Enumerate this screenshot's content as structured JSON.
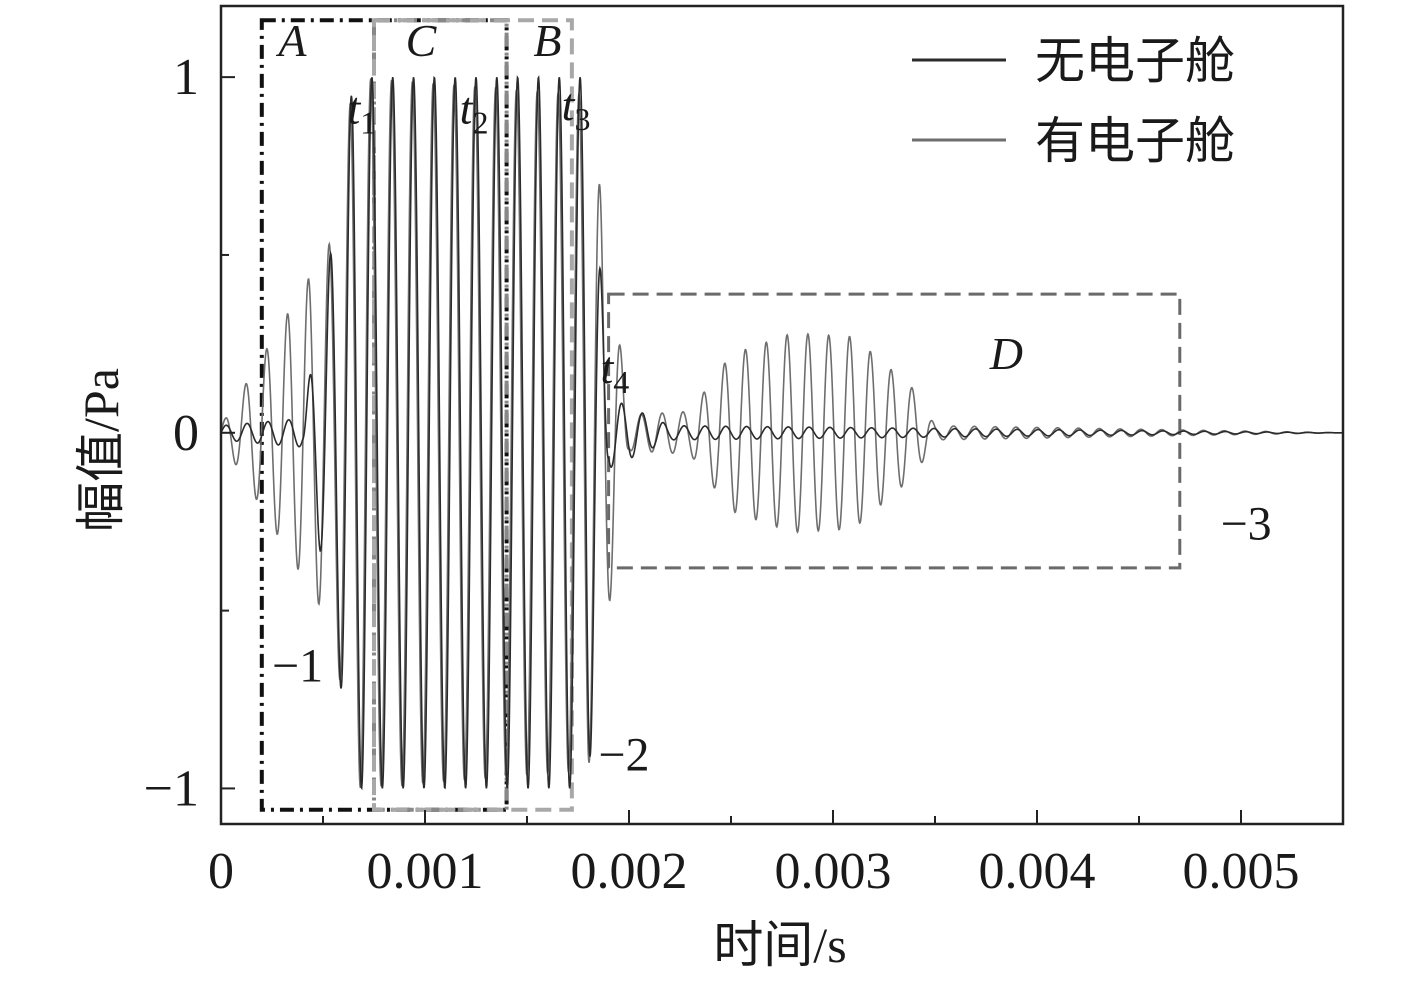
{
  "chart_data": {
    "type": "line",
    "xlabel": "时间/s",
    "ylabel": "幅值/Pa",
    "xlim": [
      0,
      0.0055
    ],
    "ylim": [
      -1.1,
      1.2
    ],
    "x_ticks": [
      0,
      0.001,
      0.002,
      0.003,
      0.004,
      0.005
    ],
    "x_tick_labels": [
      "0",
      "0.001",
      "0.002",
      "0.003",
      "0.004",
      "0.005"
    ],
    "y_ticks": [
      -1,
      0,
      1
    ],
    "y_tick_labels": [
      "−1",
      "0",
      "1"
    ],
    "grid": false,
    "legend_position": "top-right",
    "series": [
      {
        "name": "无电子舱",
        "color": "#2b2b2b",
        "description_of_shape": "burst 0.0005–0.0019 s, oscillating ≈±1 Pa at ~10 kHz, then near zero",
        "envelope": [
          [
            0.0,
            0.02
          ],
          [
            0.0004,
            0.04
          ],
          [
            0.00055,
            0.55
          ],
          [
            0.00065,
            1.0
          ],
          [
            0.0018,
            1.0
          ],
          [
            0.0019,
            0.1
          ],
          [
            0.0022,
            0.02
          ],
          [
            0.0055,
            0.0
          ]
        ]
      },
      {
        "name": "有电子舱",
        "color": "#6e6e6e",
        "description_of_shape": "same initial burst plus a delayed echo burst 0.0023–0.0035 s peaking ≈±0.28 Pa",
        "envelope": [
          [
            0.0,
            0.02
          ],
          [
            0.00055,
            0.55
          ],
          [
            0.00065,
            1.0
          ],
          [
            0.0018,
            0.95
          ],
          [
            0.002,
            0.05
          ],
          [
            0.0023,
            0.06
          ],
          [
            0.0025,
            0.22
          ],
          [
            0.0028,
            0.28
          ],
          [
            0.0031,
            0.27
          ],
          [
            0.0034,
            0.12
          ],
          [
            0.0035,
            0.02
          ],
          [
            0.0055,
            0.0
          ]
        ]
      }
    ],
    "annotations": {
      "regions": [
        {
          "label": "A",
          "x0": 0.0002,
          "x1": 0.0014,
          "y0": -1.06,
          "y1": 1.16,
          "style": "black-dashdot"
        },
        {
          "label": "C",
          "x0": 0.00075,
          "x1": 0.0014,
          "y0": -1.06,
          "y1": 1.16,
          "style": "gray-dashdot"
        },
        {
          "label": "B",
          "x0": 0.00075,
          "x1": 0.00172,
          "y0": -1.06,
          "y1": 1.16,
          "style": "lightgray-dashed"
        },
        {
          "label": "D",
          "x0": 0.0019,
          "x1": 0.0047,
          "y0": -0.38,
          "y1": 0.39,
          "style": "gray-dashed"
        }
      ],
      "markers": [
        {
          "base": "t",
          "sub": "1",
          "x": 0.00062,
          "y": 0.87
        },
        {
          "base": "t",
          "sub": "2",
          "x": 0.00117,
          "y": 0.87
        },
        {
          "base": "t",
          "sub": "3",
          "x": 0.00167,
          "y": 0.88
        },
        {
          "base": "t",
          "sub": "4",
          "x": 0.00186,
          "y": 0.14
        }
      ],
      "numbers": [
        {
          "text": "−1",
          "x": 0.00025,
          "y": -0.7
        },
        {
          "text": "−2",
          "x": 0.00185,
          "y": -0.95
        },
        {
          "text": "−3",
          "x": 0.0049,
          "y": -0.3
        }
      ]
    }
  }
}
